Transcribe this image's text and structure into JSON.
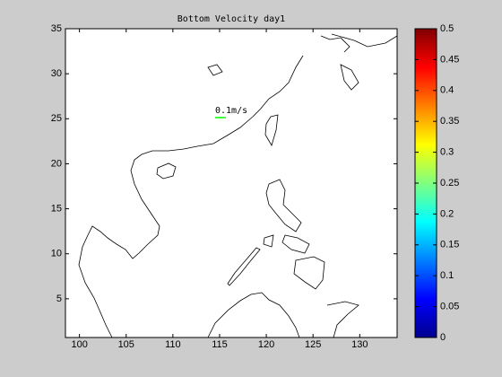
{
  "chart_data": {
    "type": "map",
    "title": "Bottom Velocity day1",
    "xlim": [
      98.5,
      134
    ],
    "xticks": [
      100,
      105,
      110,
      115,
      120,
      125,
      130
    ],
    "ylim": [
      0.7,
      35
    ],
    "yticks": [
      5,
      10,
      15,
      20,
      25,
      30,
      35
    ],
    "annotation": "0.1m/s",
    "reference_color": "#00ff00",
    "coast_color": "#000000",
    "colorbar": {
      "clim": [
        0,
        0.5
      ],
      "ticks": [
        0,
        0.05,
        0.1,
        0.15,
        0.2,
        0.25,
        0.3,
        0.35,
        0.4,
        0.45,
        0.5
      ],
      "colormap": "jet"
    }
  }
}
